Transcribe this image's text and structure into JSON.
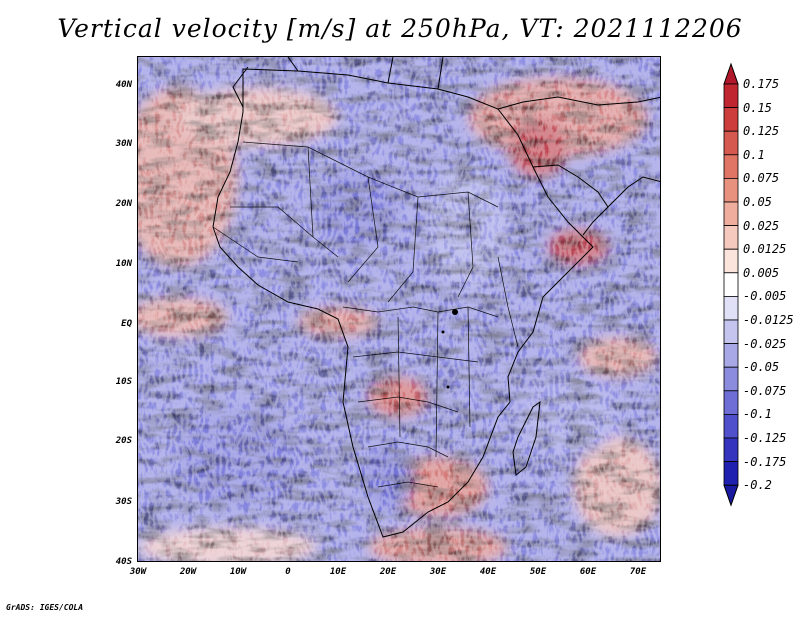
{
  "title": "Vertical velocity [m/s] at 250hPa, VT: 2021112206",
  "footer": "GrADS: IGES/COLA",
  "map": {
    "region": "Africa and surrounding oceans",
    "variable": "Vertical velocity",
    "units": "m/s",
    "level": "250hPa",
    "valid_time": "2021112206",
    "lon_range": [
      -30,
      75
    ],
    "lat_range": [
      -40,
      45
    ],
    "lat_ticks": [
      "40N",
      "30N",
      "20N",
      "10N",
      "EQ",
      "10S",
      "20S",
      "30S",
      "40S"
    ],
    "lon_ticks": [
      "30W",
      "20W",
      "10W",
      "0",
      "10E",
      "20E",
      "30E",
      "40E",
      "50E",
      "60E",
      "70E"
    ]
  },
  "colorbar": {
    "labels": [
      "0.175",
      "0.15",
      "0.125",
      "0.1",
      "0.075",
      "0.05",
      "0.025",
      "0.0125",
      "0.005",
      "-0.005",
      "-0.0125",
      "-0.025",
      "-0.05",
      "-0.075",
      "-0.1",
      "-0.125",
      "-0.175",
      "-0.2"
    ],
    "colors": [
      "#b2182b",
      "#c0262f",
      "#cd3d3c",
      "#d6594f",
      "#e07566",
      "#e8917f",
      "#efad9e",
      "#f5c9bd",
      "#fae4dc",
      "#ffffff",
      "#e0e0f6",
      "#c4c4ee",
      "#a8a8e6",
      "#8c8cde",
      "#6e6ed6",
      "#5050cc",
      "#3434bf",
      "#2020b0",
      "#1a1aa0"
    ]
  }
}
